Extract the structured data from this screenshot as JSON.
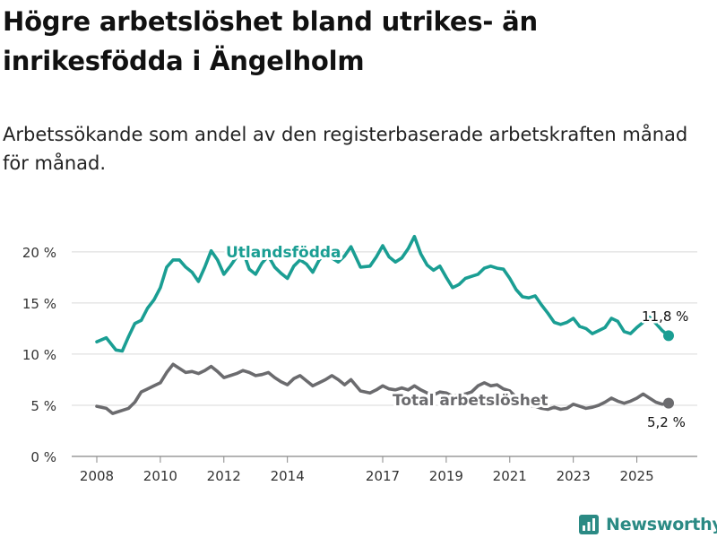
{
  "title": "Högre arbetslöshet bland utrikes- än inrikesfödda i Ängelholm",
  "subtitle": "Arbetssökande som andel av den registerbaserade arbetskraften månad för månad.",
  "brand": "Newsworthy",
  "colors": {
    "foreign": "#1a9e93",
    "total": "#6b6b6e",
    "grid": "#d9d9d9",
    "text": "#333333",
    "brand": "#2b8a84"
  },
  "chart_data": {
    "type": "line",
    "x_ticks": [
      "2008",
      "2010",
      "2012",
      "2014",
      "2017",
      "2019",
      "2021",
      "2023",
      "2025"
    ],
    "y_ticks": [
      "0 %",
      "5 %",
      "10 %",
      "15 %",
      "20 %"
    ],
    "xlim": [
      2008.0,
      2026.8
    ],
    "ylim": [
      0,
      22
    ],
    "series": [
      {
        "name": "Utlandsfödda",
        "color": "#1a9e93",
        "end_label": "11,8 %",
        "points": [
          [
            2008.0,
            11.2
          ],
          [
            2008.3,
            11.6
          ],
          [
            2008.6,
            10.4
          ],
          [
            2008.8,
            10.3
          ],
          [
            2009.0,
            11.7
          ],
          [
            2009.2,
            13.0
          ],
          [
            2009.4,
            13.3
          ],
          [
            2009.6,
            14.5
          ],
          [
            2009.8,
            15.3
          ],
          [
            2010.0,
            16.5
          ],
          [
            2010.2,
            18.5
          ],
          [
            2010.4,
            19.2
          ],
          [
            2010.6,
            19.2
          ],
          [
            2010.8,
            18.5
          ],
          [
            2011.0,
            18.0
          ],
          [
            2011.2,
            17.1
          ],
          [
            2011.4,
            18.5
          ],
          [
            2011.6,
            20.1
          ],
          [
            2011.8,
            19.2
          ],
          [
            2012.0,
            17.8
          ],
          [
            2012.2,
            18.6
          ],
          [
            2012.4,
            19.5
          ],
          [
            2012.6,
            20.1
          ],
          [
            2012.8,
            18.3
          ],
          [
            2013.0,
            17.8
          ],
          [
            2013.2,
            18.9
          ],
          [
            2013.4,
            19.6
          ],
          [
            2013.6,
            18.5
          ],
          [
            2013.8,
            17.9
          ],
          [
            2014.0,
            17.4
          ],
          [
            2014.2,
            18.6
          ],
          [
            2014.4,
            19.2
          ],
          [
            2014.6,
            18.8
          ],
          [
            2014.8,
            18.0
          ],
          [
            2015.0,
            19.2
          ],
          [
            2015.2,
            19.8
          ],
          [
            2015.4,
            19.4
          ],
          [
            2015.6,
            19.0
          ],
          [
            2015.8,
            19.6
          ],
          [
            2016.0,
            20.5
          ],
          [
            2016.3,
            18.5
          ],
          [
            2016.6,
            18.6
          ],
          [
            2016.8,
            19.5
          ],
          [
            2017.0,
            20.6
          ],
          [
            2017.2,
            19.5
          ],
          [
            2017.4,
            19.0
          ],
          [
            2017.6,
            19.4
          ],
          [
            2017.8,
            20.3
          ],
          [
            2018.0,
            21.5
          ],
          [
            2018.2,
            19.8
          ],
          [
            2018.4,
            18.7
          ],
          [
            2018.6,
            18.2
          ],
          [
            2018.8,
            18.6
          ],
          [
            2019.0,
            17.5
          ],
          [
            2019.2,
            16.5
          ],
          [
            2019.4,
            16.8
          ],
          [
            2019.6,
            17.4
          ],
          [
            2019.8,
            17.6
          ],
          [
            2020.0,
            17.8
          ],
          [
            2020.2,
            18.4
          ],
          [
            2020.4,
            18.6
          ],
          [
            2020.6,
            18.4
          ],
          [
            2020.8,
            18.3
          ],
          [
            2021.0,
            17.4
          ],
          [
            2021.2,
            16.3
          ],
          [
            2021.4,
            15.6
          ],
          [
            2021.6,
            15.5
          ],
          [
            2021.8,
            15.7
          ],
          [
            2022.0,
            14.8
          ],
          [
            2022.2,
            14.0
          ],
          [
            2022.4,
            13.1
          ],
          [
            2022.6,
            12.9
          ],
          [
            2022.8,
            13.1
          ],
          [
            2023.0,
            13.5
          ],
          [
            2023.2,
            12.7
          ],
          [
            2023.4,
            12.5
          ],
          [
            2023.6,
            12.0
          ],
          [
            2023.8,
            12.3
          ],
          [
            2024.0,
            12.6
          ],
          [
            2024.2,
            13.5
          ],
          [
            2024.4,
            13.2
          ],
          [
            2024.6,
            12.2
          ],
          [
            2024.8,
            12.0
          ],
          [
            2025.0,
            12.6
          ],
          [
            2025.2,
            13.1
          ],
          [
            2025.4,
            13.6
          ],
          [
            2025.6,
            13.0
          ],
          [
            2025.8,
            12.3
          ],
          [
            2026.0,
            11.8
          ]
        ]
      },
      {
        "name": "Total arbetslöshet",
        "color": "#6b6b6e",
        "end_label": "5,2 %",
        "points": [
          [
            2008.0,
            4.9
          ],
          [
            2008.3,
            4.7
          ],
          [
            2008.5,
            4.2
          ],
          [
            2008.8,
            4.5
          ],
          [
            2009.0,
            4.7
          ],
          [
            2009.2,
            5.3
          ],
          [
            2009.4,
            6.3
          ],
          [
            2009.6,
            6.6
          ],
          [
            2009.8,
            6.9
          ],
          [
            2010.0,
            7.2
          ],
          [
            2010.2,
            8.2
          ],
          [
            2010.4,
            9.0
          ],
          [
            2010.6,
            8.6
          ],
          [
            2010.8,
            8.2
          ],
          [
            2011.0,
            8.3
          ],
          [
            2011.2,
            8.1
          ],
          [
            2011.4,
            8.4
          ],
          [
            2011.6,
            8.8
          ],
          [
            2011.8,
            8.3
          ],
          [
            2012.0,
            7.7
          ],
          [
            2012.2,
            7.9
          ],
          [
            2012.4,
            8.1
          ],
          [
            2012.6,
            8.4
          ],
          [
            2012.8,
            8.2
          ],
          [
            2013.0,
            7.9
          ],
          [
            2013.2,
            8.0
          ],
          [
            2013.4,
            8.2
          ],
          [
            2013.6,
            7.7
          ],
          [
            2013.8,
            7.3
          ],
          [
            2014.0,
            7.0
          ],
          [
            2014.2,
            7.6
          ],
          [
            2014.4,
            7.9
          ],
          [
            2014.6,
            7.4
          ],
          [
            2014.8,
            6.9
          ],
          [
            2015.0,
            7.2
          ],
          [
            2015.2,
            7.5
          ],
          [
            2015.4,
            7.9
          ],
          [
            2015.6,
            7.5
          ],
          [
            2015.8,
            7.0
          ],
          [
            2016.0,
            7.5
          ],
          [
            2016.3,
            6.4
          ],
          [
            2016.6,
            6.2
          ],
          [
            2016.8,
            6.5
          ],
          [
            2017.0,
            6.9
          ],
          [
            2017.2,
            6.6
          ],
          [
            2017.4,
            6.5
          ],
          [
            2017.6,
            6.7
          ],
          [
            2017.8,
            6.5
          ],
          [
            2018.0,
            6.9
          ],
          [
            2018.2,
            6.5
          ],
          [
            2018.4,
            6.2
          ],
          [
            2018.6,
            6.0
          ],
          [
            2018.8,
            6.3
          ],
          [
            2019.0,
            6.2
          ],
          [
            2019.2,
            5.9
          ],
          [
            2019.4,
            6.0
          ],
          [
            2019.6,
            6.1
          ],
          [
            2019.8,
            6.3
          ],
          [
            2020.0,
            6.9
          ],
          [
            2020.2,
            7.2
          ],
          [
            2020.4,
            6.9
          ],
          [
            2020.6,
            7.0
          ],
          [
            2020.8,
            6.6
          ],
          [
            2021.0,
            6.4
          ],
          [
            2021.2,
            5.8
          ],
          [
            2021.4,
            5.3
          ],
          [
            2021.6,
            5.0
          ],
          [
            2021.8,
            4.9
          ],
          [
            2022.0,
            4.7
          ],
          [
            2022.2,
            4.6
          ],
          [
            2022.4,
            4.8
          ],
          [
            2022.6,
            4.6
          ],
          [
            2022.8,
            4.7
          ],
          [
            2023.0,
            5.1
          ],
          [
            2023.2,
            4.9
          ],
          [
            2023.4,
            4.7
          ],
          [
            2023.6,
            4.8
          ],
          [
            2023.8,
            5.0
          ],
          [
            2024.0,
            5.3
          ],
          [
            2024.2,
            5.7
          ],
          [
            2024.4,
            5.4
          ],
          [
            2024.6,
            5.2
          ],
          [
            2024.8,
            5.4
          ],
          [
            2025.0,
            5.7
          ],
          [
            2025.2,
            6.1
          ],
          [
            2025.4,
            5.7
          ],
          [
            2025.6,
            5.3
          ],
          [
            2025.8,
            5.1
          ],
          [
            2026.0,
            5.2
          ]
        ]
      }
    ]
  }
}
